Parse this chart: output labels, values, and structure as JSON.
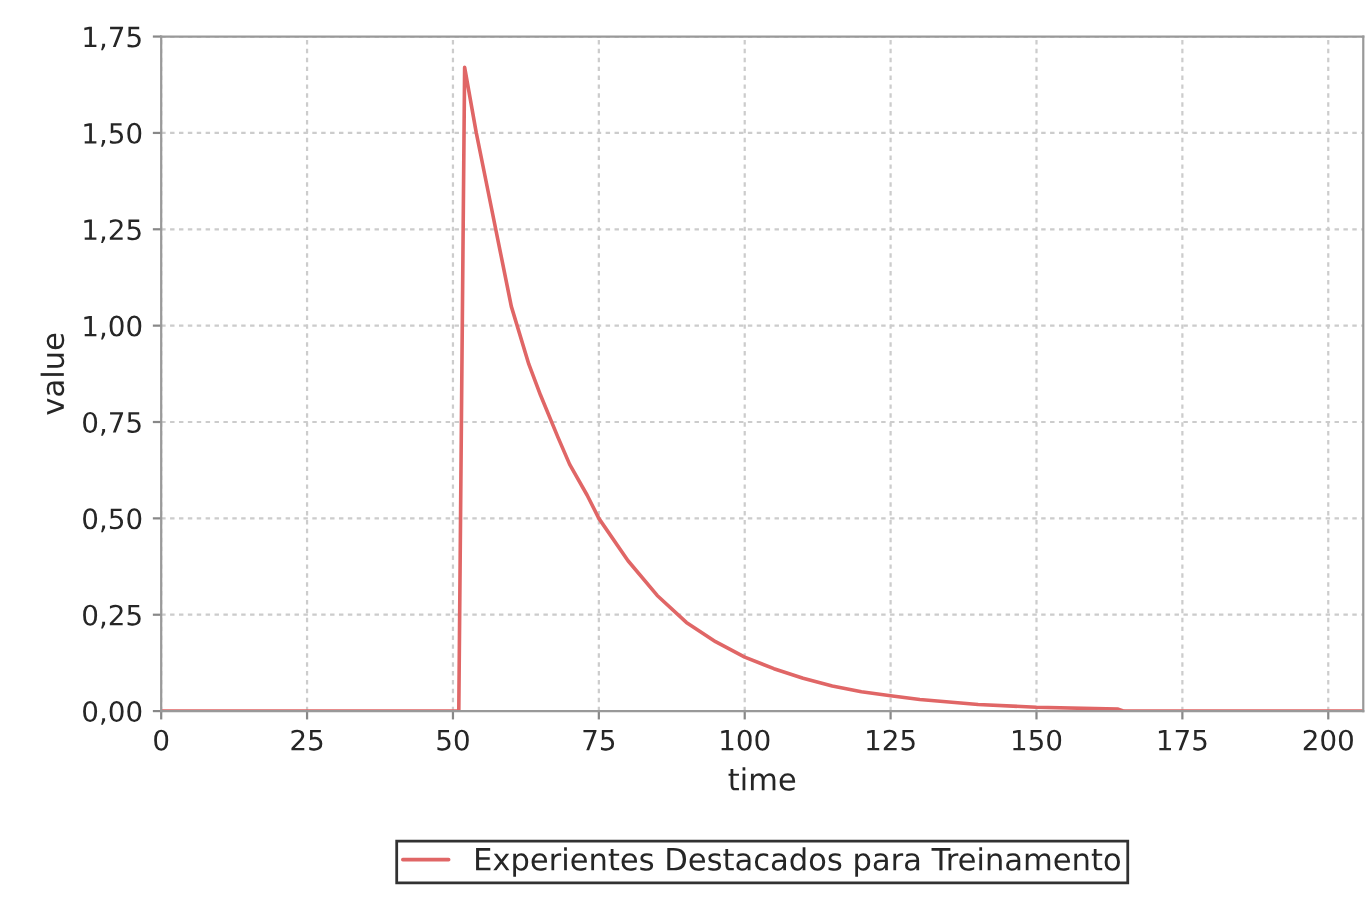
{
  "chart_data": {
    "type": "line",
    "xlabel": "time",
    "ylabel": "value",
    "series": [
      {
        "name": "Experientes Destacados para Treinamento",
        "color": "#e06666",
        "x": [
          0,
          51,
          52,
          54,
          56,
          58,
          60,
          63,
          65,
          68,
          70,
          73,
          75,
          80,
          85,
          90,
          95,
          100,
          105,
          110,
          115,
          120,
          125,
          130,
          140,
          150,
          164,
          165,
          206
        ],
        "values": [
          0,
          0,
          1.67,
          1.5,
          1.35,
          1.2,
          1.05,
          0.9,
          0.82,
          0.71,
          0.64,
          0.56,
          0.5,
          0.39,
          0.3,
          0.23,
          0.18,
          0.14,
          0.11,
          0.085,
          0.065,
          0.05,
          0.04,
          0.03,
          0.017,
          0.01,
          0.005,
          0,
          0
        ]
      }
    ],
    "xlim": [
      0,
      206
    ],
    "xticks": [
      0,
      25,
      50,
      75,
      100,
      125,
      150,
      175,
      200
    ],
    "ylim": [
      0,
      1.75
    ],
    "yticks": [
      {
        "value": 0,
        "label": "0,00"
      },
      {
        "value": 0.25,
        "label": "0,25"
      },
      {
        "value": 0.5,
        "label": "0,50"
      },
      {
        "value": 0.75,
        "label": "0,75"
      },
      {
        "value": 1.0,
        "label": "1,00"
      },
      {
        "value": 1.25,
        "label": "1,25"
      },
      {
        "value": 1.5,
        "label": "1,50"
      },
      {
        "value": 1.75,
        "label": "1,75"
      }
    ],
    "grid": true,
    "legend": "bottom"
  }
}
